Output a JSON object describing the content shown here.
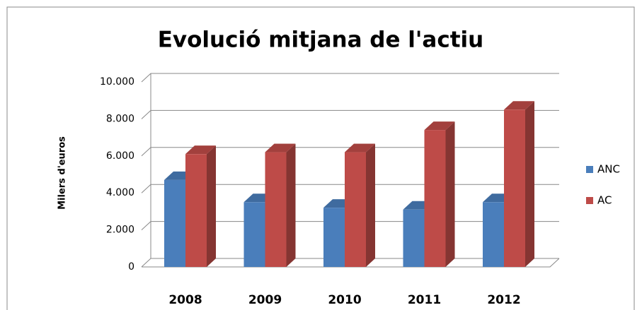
{
  "chart_data": {
    "type": "bar3d",
    "title": "Evolució mitjana de l'actiu",
    "y_label": "Milers d'euros",
    "categories": [
      "2008",
      "2009",
      "2010",
      "2011",
      "2012"
    ],
    "series": [
      {
        "name": "ANC",
        "color": "#4a7ebb",
        "values": [
          4700,
          3500,
          3200,
          3100,
          3500
        ]
      },
      {
        "name": "AC",
        "color": "#be4b48",
        "values": [
          6100,
          6200,
          6200,
          7400,
          8500
        ]
      }
    ],
    "ylim": [
      0,
      10000
    ],
    "yticks": [
      0,
      {
        "value": 2000,
        "label": "2.000"
      },
      {
        "value": 4000,
        "label": "4.000"
      },
      {
        "value": 6000,
        "label": "6.000"
      },
      {
        "value": 8000,
        "label": "8.000"
      },
      {
        "value": 10000,
        "label": "10.000"
      }
    ],
    "grid": true,
    "legend": "right"
  }
}
